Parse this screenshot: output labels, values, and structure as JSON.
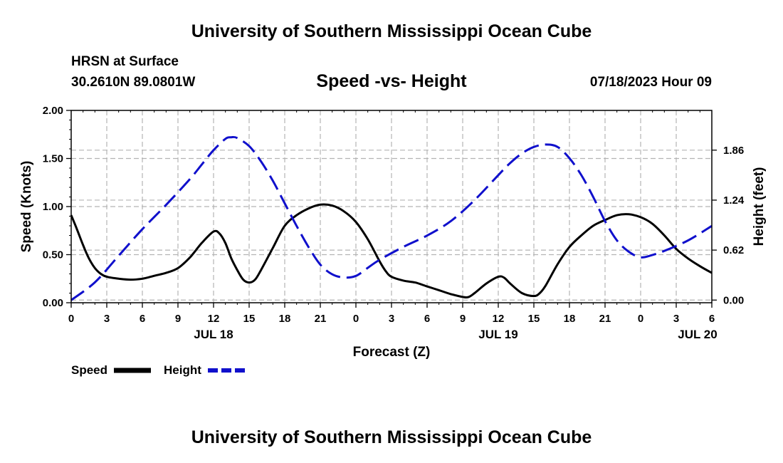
{
  "header": {
    "title": "University of Southern Mississippi Ocean Cube",
    "station": "HRSN at Surface",
    "coordinates": "30.2610N  89.0801W",
    "datetime": "07/18/2023 Hour 09"
  },
  "footer": {
    "title": "University of Southern Mississippi Ocean Cube"
  },
  "chart_data": {
    "type": "line",
    "title": "Speed -vs- Height",
    "xlabel": "Forecast (Z)",
    "ylabel": "Speed (Knots)",
    "y2label": "Height (feet)",
    "grid": true,
    "x_unit": "hours since 00Z JUL 18",
    "xlim": [
      0,
      54
    ],
    "ylim": [
      0,
      2.0
    ],
    "y2lim": [
      -0.033,
      2.353
    ],
    "x_ticks": [
      0,
      3,
      6,
      9,
      12,
      15,
      18,
      21,
      24,
      27,
      30,
      33,
      36,
      39,
      42,
      45,
      48,
      51,
      54
    ],
    "x_tick_labels": [
      "0",
      "3",
      "6",
      "9",
      "12",
      "15",
      "18",
      "21",
      "0",
      "3",
      "6",
      "9",
      "12",
      "15",
      "18",
      "21",
      "0",
      "3",
      "6"
    ],
    "y_ticks": [
      0,
      0.5,
      1.0,
      1.5,
      2.0
    ],
    "y_tick_labels": [
      "0.00",
      "0.50",
      "1.00",
      "1.50",
      "2.00"
    ],
    "y2_ticks": [
      0,
      0.62,
      1.24,
      1.86
    ],
    "y2_tick_labels": [
      "0.00",
      "0.62",
      "1.24",
      "1.86"
    ],
    "date_labels": [
      {
        "x": 12,
        "label": "JUL 18"
      },
      {
        "x": 36,
        "label": "JUL 19"
      },
      {
        "x": 52.8,
        "label": "JUL 20"
      }
    ],
    "series": [
      {
        "name": "Speed",
        "axis": "left",
        "color": "#000000",
        "dash": "solid",
        "x": [
          0,
          0.5,
          1,
          1.5,
          2,
          2.5,
          3,
          4,
          5,
          6,
          7,
          8,
          9,
          10,
          11,
          12,
          12.5,
          13,
          13.5,
          14,
          14.5,
          15,
          15.5,
          16,
          17,
          18,
          19,
          20,
          21,
          22,
          23,
          24,
          25,
          26,
          26.5,
          27,
          28,
          29,
          30,
          31,
          32,
          33,
          33.5,
          34,
          35,
          36,
          36.5,
          37,
          38,
          39,
          39.5,
          40,
          41,
          42,
          43,
          44,
          45,
          46,
          47,
          48,
          49,
          50,
          51,
          52,
          53,
          54
        ],
        "values": [
          0.91,
          0.76,
          0.6,
          0.46,
          0.36,
          0.3,
          0.27,
          0.25,
          0.24,
          0.25,
          0.28,
          0.31,
          0.36,
          0.47,
          0.62,
          0.74,
          0.72,
          0.62,
          0.46,
          0.34,
          0.24,
          0.21,
          0.24,
          0.34,
          0.57,
          0.8,
          0.91,
          0.98,
          1.02,
          1.01,
          0.95,
          0.84,
          0.66,
          0.43,
          0.33,
          0.27,
          0.23,
          0.21,
          0.17,
          0.13,
          0.09,
          0.06,
          0.06,
          0.1,
          0.2,
          0.27,
          0.26,
          0.2,
          0.1,
          0.07,
          0.1,
          0.18,
          0.4,
          0.58,
          0.7,
          0.8,
          0.86,
          0.91,
          0.92,
          0.89,
          0.82,
          0.7,
          0.56,
          0.46,
          0.38,
          0.31
        ]
      },
      {
        "name": "Height",
        "axis": "right",
        "color": "#1010cc",
        "dash": "dashed",
        "x": [
          0,
          2,
          4,
          6,
          8,
          10,
          11,
          12,
          13,
          13.5,
          14,
          15,
          16,
          17,
          18,
          19,
          20,
          21,
          22,
          23,
          24,
          25,
          26,
          28,
          30,
          32,
          34,
          36,
          37,
          38,
          39,
          40,
          41,
          42,
          43,
          44,
          45,
          46,
          47,
          48,
          49,
          50,
          52,
          54
        ],
        "values": [
          0.0,
          0.22,
          0.55,
          0.88,
          1.18,
          1.5,
          1.68,
          1.86,
          2.0,
          2.02,
          2.01,
          1.91,
          1.72,
          1.48,
          1.2,
          0.92,
          0.66,
          0.44,
          0.32,
          0.28,
          0.3,
          0.4,
          0.5,
          0.66,
          0.8,
          0.98,
          1.24,
          1.55,
          1.7,
          1.82,
          1.9,
          1.93,
          1.9,
          1.76,
          1.55,
          1.28,
          0.98,
          0.74,
          0.6,
          0.53,
          0.56,
          0.61,
          0.74,
          0.92
        ]
      }
    ],
    "legend": {
      "placement": "bottom-left",
      "items": [
        {
          "label": "Speed",
          "color": "#000000",
          "dash": "solid"
        },
        {
          "label": "Height",
          "color": "#1010cc",
          "dash": "dashed"
        }
      ]
    }
  }
}
